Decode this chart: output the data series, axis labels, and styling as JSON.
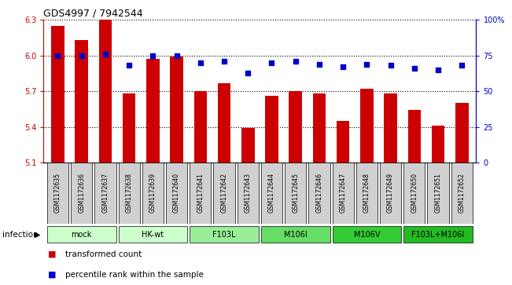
{
  "title": "GDS4997 / 7942544",
  "samples": [
    "GSM1172635",
    "GSM1172636",
    "GSM1172637",
    "GSM1172638",
    "GSM1172639",
    "GSM1172640",
    "GSM1172641",
    "GSM1172642",
    "GSM1172643",
    "GSM1172644",
    "GSM1172645",
    "GSM1172646",
    "GSM1172647",
    "GSM1172648",
    "GSM1172649",
    "GSM1172650",
    "GSM1172651",
    "GSM1172652"
  ],
  "bar_values": [
    6.25,
    6.13,
    6.3,
    5.68,
    5.97,
    5.99,
    5.7,
    5.77,
    5.39,
    5.66,
    5.7,
    5.68,
    5.45,
    5.72,
    5.68,
    5.54,
    5.41,
    5.6
  ],
  "dot_values": [
    75,
    75,
    76,
    68,
    75,
    75,
    70,
    71,
    63,
    70,
    71,
    69,
    67,
    69,
    68,
    66,
    65,
    68
  ],
  "ylim": [
    5.1,
    6.3
  ],
  "yticks": [
    5.1,
    5.4,
    5.7,
    6.0,
    6.3
  ],
  "y2lim": [
    0,
    100
  ],
  "y2ticks": [
    0,
    25,
    50,
    75,
    100
  ],
  "y2ticklabels": [
    "0",
    "25",
    "50",
    "75",
    "100%"
  ],
  "bar_color": "#cc0000",
  "dot_color": "#0000cc",
  "bar_bottom": 5.1,
  "groups": [
    {
      "label": "mock",
      "start": 0,
      "end": 2,
      "color": "#ccffcc"
    },
    {
      "label": "HK-wt",
      "start": 3,
      "end": 5,
      "color": "#ccffcc"
    },
    {
      "label": "F103L",
      "start": 6,
      "end": 8,
      "color": "#99ee99"
    },
    {
      "label": "M106I",
      "start": 9,
      "end": 11,
      "color": "#66dd66"
    },
    {
      "label": "M106V",
      "start": 12,
      "end": 14,
      "color": "#33cc33"
    },
    {
      "label": "F103L+M106I",
      "start": 15,
      "end": 17,
      "color": "#22bb22"
    }
  ],
  "xlabel_infection": "infection",
  "legend_bar": "transformed count",
  "legend_dot": "percentile rank within the sample",
  "bar_width": 0.55
}
